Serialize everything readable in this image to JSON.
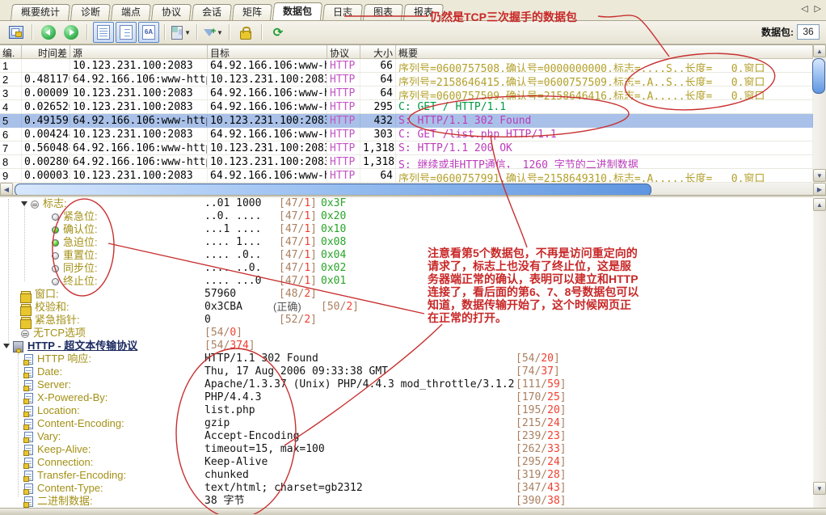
{
  "tabs": {
    "active": "数据包",
    "items": [
      {
        "key": "summary-stats",
        "label": "概要统计"
      },
      {
        "key": "diagnosis",
        "label": "诊断"
      },
      {
        "key": "endpoints",
        "label": "端点"
      },
      {
        "key": "protocols",
        "label": "协议"
      },
      {
        "key": "conversations",
        "label": "会话"
      },
      {
        "key": "matrix",
        "label": "矩阵"
      },
      {
        "key": "packets",
        "label": "数据包"
      },
      {
        "key": "logs",
        "label": "日志"
      },
      {
        "key": "charts",
        "label": "图表"
      },
      {
        "key": "reports",
        "label": "报表"
      }
    ]
  },
  "toolbar": {
    "icons": [
      "packet-buffer-icon",
      "back-icon",
      "forward-icon",
      "view-list-icon",
      "view-detail-icon",
      "view-hex-icon",
      "columns-icon",
      "filter-icon",
      "lock-icon",
      "refresh-icon"
    ],
    "hex_glyph": "6A",
    "refresh_glyph": "⟳",
    "packet_count_label": "数据包:",
    "packet_count": "36"
  },
  "packet_table": {
    "headers": [
      "编.",
      "时间差",
      "源",
      "目标",
      "协议",
      "大小",
      "概要"
    ],
    "rows": [
      {
        "no": "1",
        "delta": "",
        "src": "10.123.231.100:2083",
        "dst": "64.92.166.106:www-http",
        "proto": "HTTP",
        "size": "66",
        "summary": "序列号=0600757508,确认号=0000000000,标志=....S.,长度=   0,窗口",
        "color": "olive",
        "selected": false
      },
      {
        "no": "2",
        "delta": "0.481170",
        "src": "64.92.166.106:www-http",
        "dst": "10.123.231.100:2083",
        "proto": "HTTP",
        "size": "64",
        "summary": "序列号=2158646415,确认号=0600757509,标志=.A..S.,长度=   0,窗口",
        "color": "olive",
        "selected": false
      },
      {
        "no": "3",
        "delta": "0.000091",
        "src": "10.123.231.100:2083",
        "dst": "64.92.166.106:www-http",
        "proto": "HTTP",
        "size": "64",
        "summary": "序列号=0600757509,确认号=2158646416,标志=.A....,长度=   0,窗口",
        "color": "olive",
        "selected": false
      },
      {
        "no": "4",
        "delta": "0.026526",
        "src": "10.123.231.100:2083",
        "dst": "64.92.166.106:www-http",
        "proto": "HTTP",
        "size": "295",
        "summary": "C: GET / HTTP/1.1",
        "color": "green",
        "selected": false
      },
      {
        "no": "5",
        "delta": "0.491591",
        "src": "64.92.166.106:www-http",
        "dst": "10.123.231.100:2083",
        "proto": "HTTP",
        "size": "432",
        "summary": "S: HTTP/1.1 302 Found",
        "color": "magenta",
        "selected": true
      },
      {
        "no": "6",
        "delta": "0.004248",
        "src": "10.123.231.100:2083",
        "dst": "64.92.166.106:www-http",
        "proto": "HTTP",
        "size": "303",
        "summary": "C: GET /list.php HTTP/1.1",
        "color": "magenta",
        "selected": false
      },
      {
        "no": "7",
        "delta": "0.560484",
        "src": "64.92.166.106:www-http",
        "dst": "10.123.231.100:2083",
        "proto": "HTTP",
        "size": "1,318",
        "summary": "S: HTTP/1.1 200 OK",
        "color": "magenta",
        "selected": false
      },
      {
        "no": "8",
        "delta": "0.002806",
        "src": "64.92.166.106:www-http",
        "dst": "10.123.231.100:2083",
        "proto": "HTTP",
        "size": "1,318",
        "summary": "S: 继续或非HTTP通信， 1260 字节的二进制数据",
        "color": "magenta",
        "selected": false
      },
      {
        "no": "9",
        "delta": "0.000033",
        "src": "10.123.231.100:2083",
        "dst": "64.92.166.106:www-http",
        "proto": "HTTP",
        "size": "64",
        "summary": "序列号=0600757991,确认号=2158649310,标志=.A....,长度=   0,窗口",
        "color": "olive",
        "selected": false
      }
    ],
    "partial_row_summary": "继续或非HTTP通信， 1260 字节的二进制数据"
  },
  "detail_tree": {
    "rows": [
      {
        "ind": "l1",
        "exp": true,
        "icon": "node",
        "label": "标志:",
        "value": "..01 1000",
        "bracket": "[47/1]",
        "bx": "a",
        "hex": "0x3F"
      },
      {
        "ind": "l2",
        "icon": "led-off",
        "label": "紧急位:",
        "value": "..0. ....",
        "bracket": "[47/1]",
        "bx": "a",
        "hex": "0x20"
      },
      {
        "ind": "l2",
        "icon": "led-on",
        "label": "确认位:",
        "value": "...1 ....",
        "bracket": "[47/1]",
        "bx": "a",
        "hex": "0x10"
      },
      {
        "ind": "l2",
        "icon": "led-on",
        "label": "急迫位:",
        "value": ".... 1...",
        "bracket": "[47/1]",
        "bx": "a",
        "hex": "0x08"
      },
      {
        "ind": "l2",
        "icon": "led-off",
        "label": "重置位:",
        "value": ".... .0..",
        "bracket": "[47/1]",
        "bx": "a",
        "hex": "0x04"
      },
      {
        "ind": "l2",
        "icon": "led-off",
        "label": "同步位:",
        "value": ".... ..0.",
        "bracket": "[47/1]",
        "bx": "a",
        "hex": "0x02"
      },
      {
        "ind": "l2",
        "icon": "led-off",
        "label": "终止位:",
        "value": ".... ...0",
        "bracket": "[47/1]",
        "bx": "a",
        "hex": "0x01"
      },
      {
        "ind": "l1",
        "icon": "field",
        "label": "窗口:",
        "value": "57960",
        "bracket": "[48/2]",
        "bx": "a"
      },
      {
        "ind": "l1",
        "icon": "field",
        "label": "校验和:",
        "value": "0x3CBA",
        "note": "(正确)",
        "bracket": "[50/2]",
        "bx": "b"
      },
      {
        "ind": "l1",
        "icon": "field",
        "label": "紧急指针:",
        "value": "0",
        "bracket": "[52/2]",
        "bx": "a"
      },
      {
        "ind": "l1",
        "icon": "node",
        "label": "无TCP选项",
        "bracket": "[54/0]",
        "bx": "v"
      },
      {
        "ind": "l0",
        "exp": true,
        "icon": "proto",
        "label": "HTTP - 超文本传输协议",
        "bracket": "[54/374]",
        "bx": "v",
        "section": true
      },
      {
        "ind": "lh",
        "icon": "doc",
        "label": "HTTP 响应:",
        "value": "HTTP/1.1 302 Found",
        "bracket": "[54/20]",
        "bx": "r"
      },
      {
        "ind": "lh",
        "icon": "doc",
        "label": "Date:",
        "value": "Thu, 17 Aug 2006 09:33:38 GMT",
        "bracket": "[74/37]",
        "bx": "r"
      },
      {
        "ind": "lh",
        "icon": "doc",
        "label": "Server:",
        "value": "Apache/1.3.37 (Unix) PHP/4.4.3 mod_throttle/3.1.2",
        "bracket": "[111/59]",
        "bx": "r"
      },
      {
        "ind": "lh",
        "icon": "doc",
        "label": "X-Powered-By:",
        "value": "PHP/4.4.3",
        "bracket": "[170/25]",
        "bx": "r"
      },
      {
        "ind": "lh",
        "icon": "doc",
        "label": "Location:",
        "value": "list.php",
        "bracket": "[195/20]",
        "bx": "r"
      },
      {
        "ind": "lh",
        "icon": "doc",
        "label": "Content-Encoding:",
        "value": "gzip",
        "bracket": "[215/24]",
        "bx": "r"
      },
      {
        "ind": "lh",
        "icon": "doc",
        "label": "Vary:",
        "value": "Accept-Encoding",
        "bracket": "[239/23]",
        "bx": "r"
      },
      {
        "ind": "lh",
        "icon": "doc",
        "label": "Keep-Alive:",
        "value": "timeout=15, max=100",
        "bracket": "[262/33]",
        "bx": "r"
      },
      {
        "ind": "lh",
        "icon": "doc",
        "label": "Connection:",
        "value": "Keep-Alive",
        "bracket": "[295/24]",
        "bx": "r"
      },
      {
        "ind": "lh",
        "icon": "doc",
        "label": "Transfer-Encoding:",
        "value": "chunked",
        "bracket": "[319/28]",
        "bx": "r"
      },
      {
        "ind": "lh",
        "icon": "doc",
        "label": "Content-Type:",
        "value": "text/html; charset=gb2312",
        "bracket": "[347/43]",
        "bx": "r"
      },
      {
        "ind": "lh",
        "icon": "doc",
        "label": "二进制数据:",
        "value": "38 字节",
        "bracket": "[390/38]",
        "bx": "r"
      }
    ]
  },
  "annotations": {
    "top_note": "仍然是TCP三次握手的数据包",
    "note_lines": [
      "注意看第5个数据包，不再是访问重定向的",
      "请求了，标志上也没有了终止位，这是服",
      "务器端正常的确认，表明可以建立和HTTP",
      "连接了，看后面的第6、7、8号数据包可以",
      "知道，数据传输开始了，这个时候网页正",
      "在正常的打开。"
    ]
  },
  "colors": {
    "annotation_red": "#c82828",
    "selected_row": "#a9c1e8",
    "seq_text": "#b3a02a",
    "request_green": "#009944",
    "response_magenta": "#bb3cbb",
    "hex_green": "#28a428",
    "bracket_offset": "#aa8060",
    "bracket_length": "#f04030"
  }
}
